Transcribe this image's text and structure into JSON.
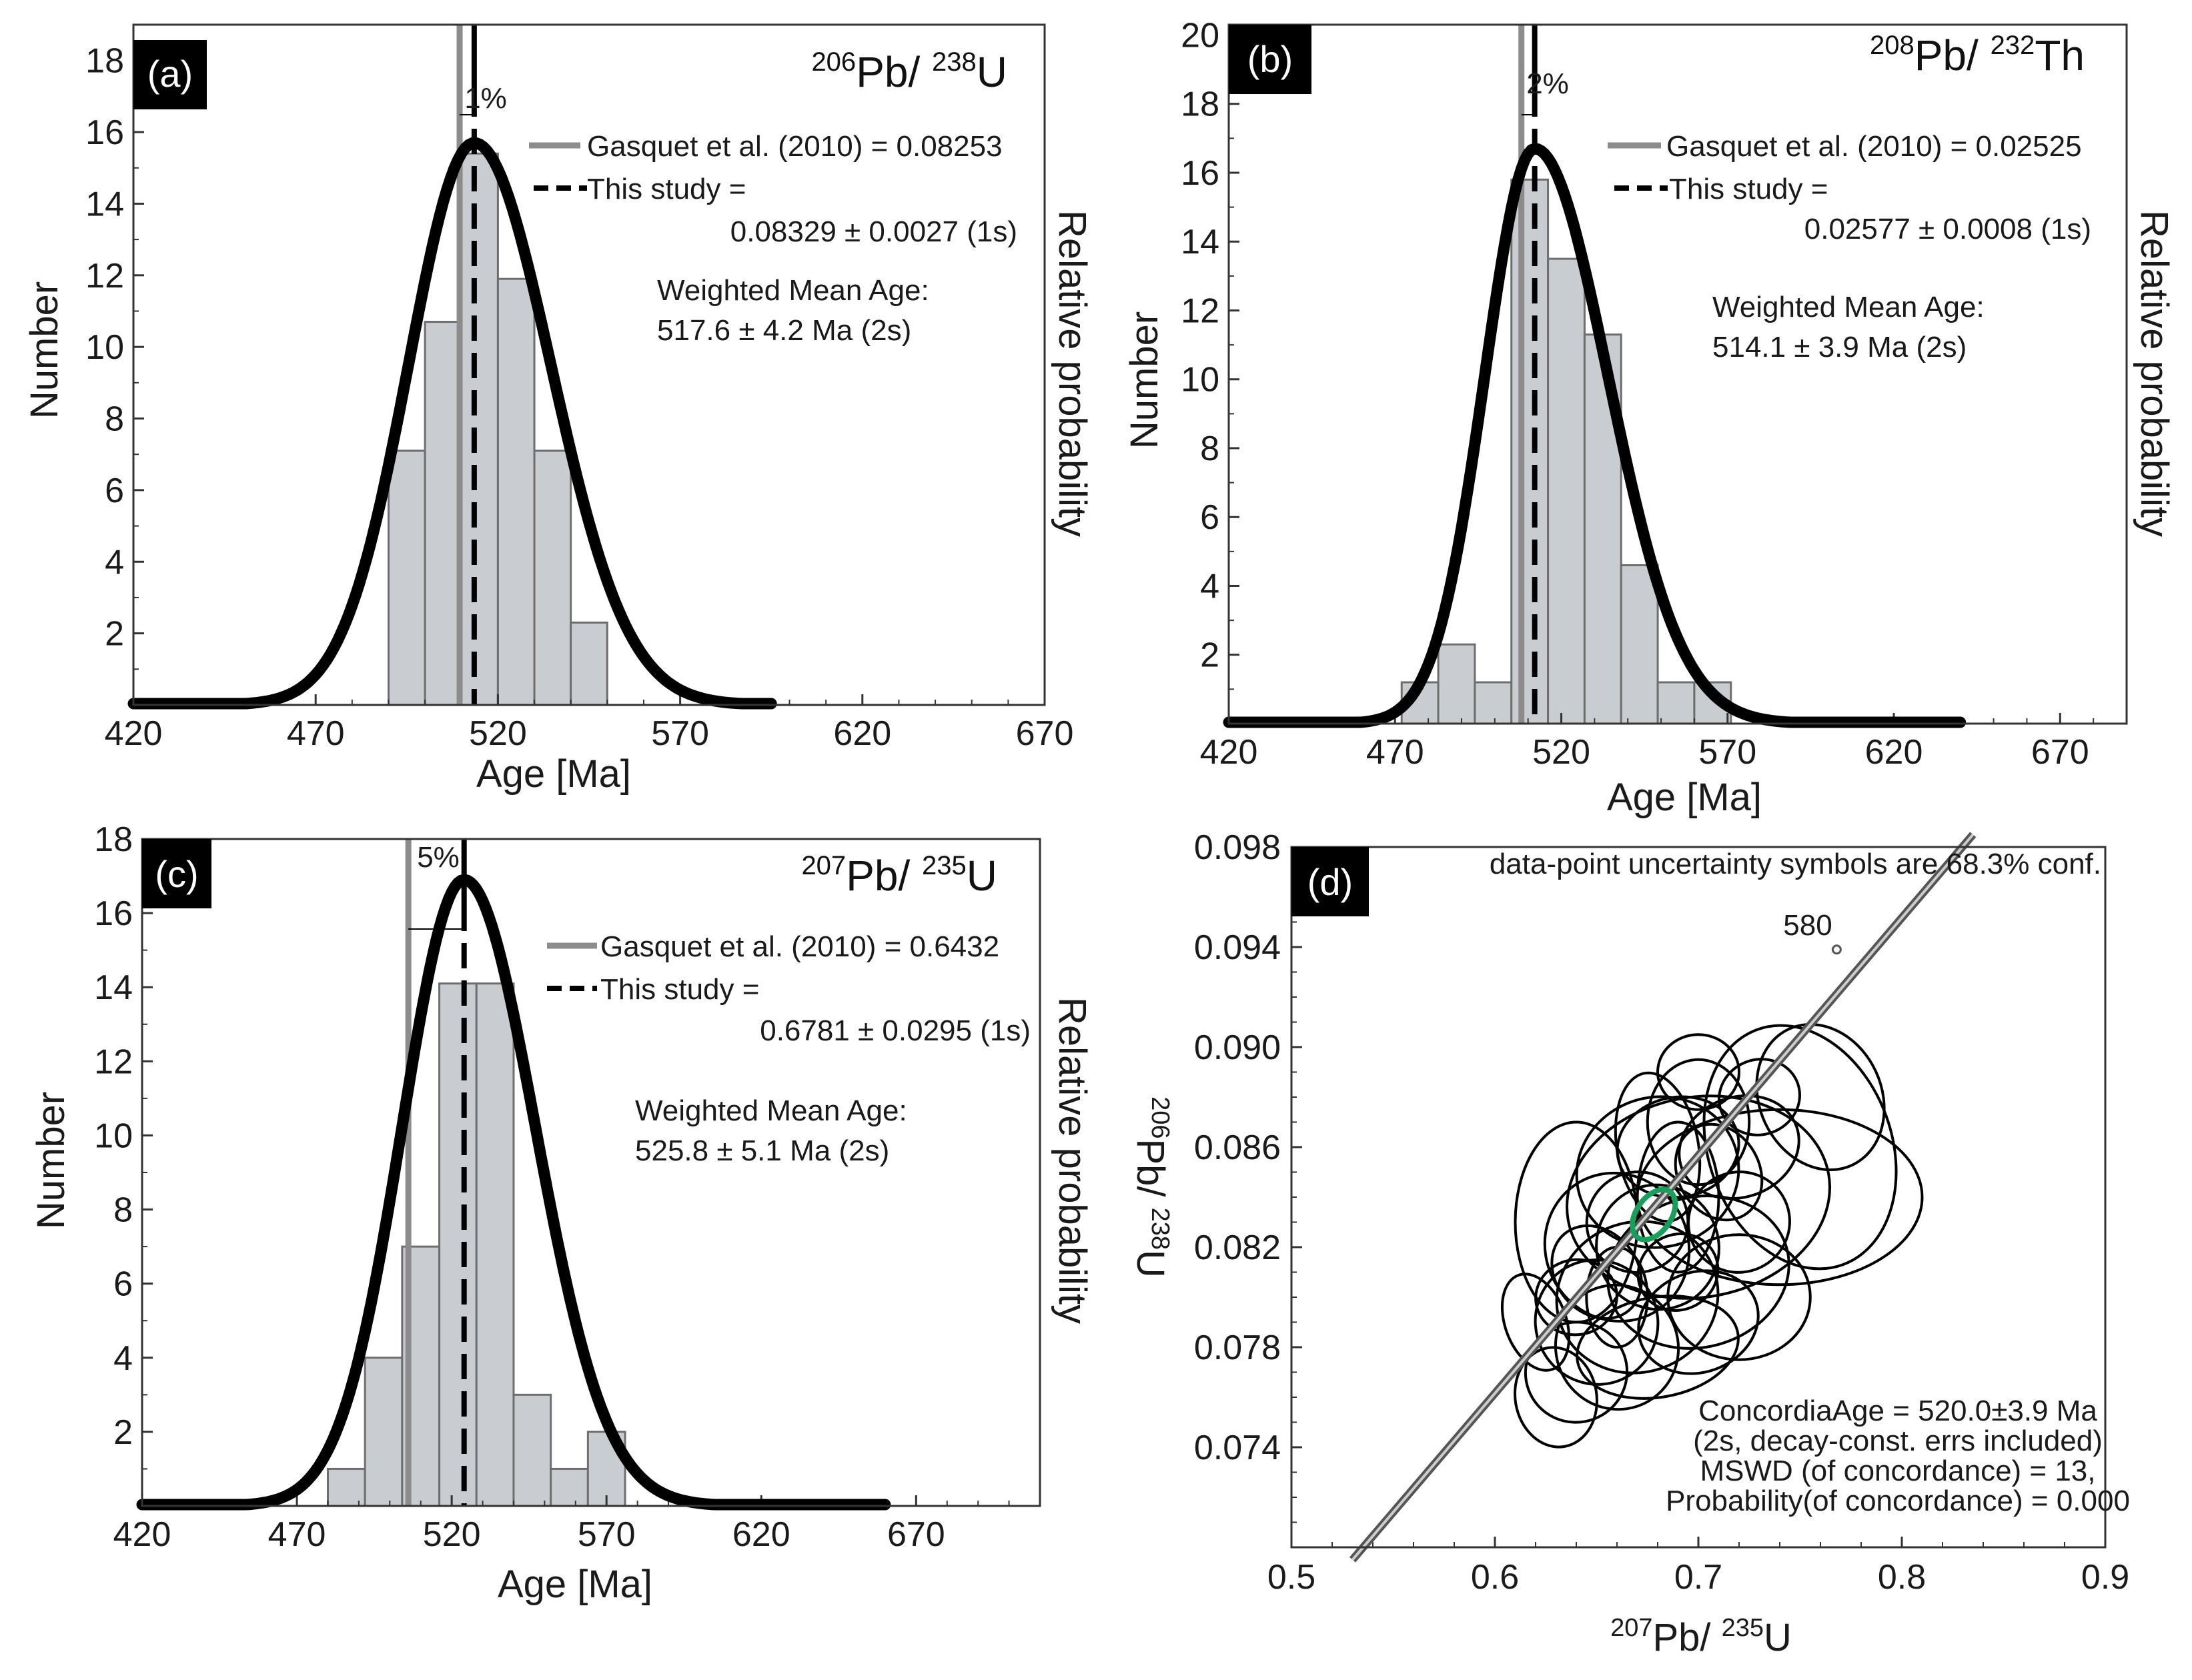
{
  "chart_data": [
    {
      "type": "bar",
      "panel": "(a)",
      "title_mass1": "206",
      "title_el1": "Pb/ ",
      "title_mass2": "238",
      "title_el2": "U",
      "xlabel": "Age [Ma]",
      "ylabel": "Number",
      "y2label": "Relative probability",
      "xlim": [
        420,
        670
      ],
      "ylim": [
        0,
        19
      ],
      "xticks": [
        "420",
        "470",
        "520",
        "570",
        "620",
        "670"
      ],
      "yticks": [
        "2",
        "4",
        "6",
        "8",
        "10",
        "12",
        "14",
        "16",
        "18"
      ],
      "bin_edges": [
        490,
        500,
        510,
        520,
        530,
        540,
        550
      ],
      "values": [
        7.1,
        10.7,
        15.4,
        11.9,
        7.1,
        2.3
      ],
      "curve": {
        "mean": 513.5,
        "sd_left": 18,
        "sd_right": 21,
        "peak": 15.7,
        "xmin": 420,
        "xmax": 595
      },
      "reference_line": {
        "label": "Gasquet et al. (2010) = 0.08253",
        "age": 509.5
      },
      "study_line": {
        "label": "This study =",
        "value": "0.08329 ± 0.0027 (1s)",
        "age": 513.5
      },
      "offset_label": "1%",
      "wm_title": "Weighted Mean Age:",
      "wm_value": "517.6 ± 4.2 Ma (2s)"
    },
    {
      "type": "bar",
      "panel": "(b)",
      "title_mass1": "208",
      "title_el1": "Pb/ ",
      "title_mass2": "232",
      "title_el2": "Th",
      "xlabel": "Age [Ma]",
      "ylabel": "Number",
      "y2label": "Relative probability",
      "xlim": [
        420,
        690
      ],
      "ylim": [
        0,
        20.3
      ],
      "xticks": [
        "420",
        "470",
        "520",
        "570",
        "620",
        "670"
      ],
      "yticks": [
        "2",
        "4",
        "6",
        "8",
        "10",
        "12",
        "14",
        "16",
        "18",
        "20"
      ],
      "bin_edges": [
        472,
        483,
        494,
        505,
        516,
        527,
        538,
        549,
        560,
        571
      ],
      "values": [
        1.2,
        2.3,
        1.2,
        15.8,
        13.5,
        11.3,
        4.6,
        1.2,
        1.2
      ],
      "curve": {
        "mean": 512,
        "sd_left": 15,
        "sd_right": 22,
        "peak": 16.7,
        "xmin": 420,
        "xmax": 640
      },
      "reference_line": {
        "label": "Gasquet et al. (2010) = 0.02525",
        "age": 508
      },
      "study_line": {
        "label": "This study =",
        "value": "0.02577 ± 0.0008 (1s)",
        "age": 512
      },
      "offset_label": "2%",
      "wm_title": "Weighted Mean Age:",
      "wm_value": "514.1 ± 3.9 Ma (2s)"
    },
    {
      "type": "bar",
      "panel": "(c)",
      "title_mass1": "207",
      "title_el1": "Pb/ ",
      "title_mass2": "235",
      "title_el2": "U",
      "xlabel": "Age [Ma]",
      "ylabel": "Number",
      "y2label": "Relative probability",
      "xlim": [
        420,
        710
      ],
      "ylim": [
        0,
        18
      ],
      "xticks": [
        "420",
        "470",
        "520",
        "570",
        "620",
        "670"
      ],
      "yticks": [
        "2",
        "4",
        "6",
        "8",
        "10",
        "12",
        "14",
        "16",
        "18"
      ],
      "bin_edges": [
        480,
        492,
        504,
        516,
        528,
        540,
        552,
        564,
        576
      ],
      "values": [
        1,
        4,
        7,
        14.1,
        14.1,
        3,
        1,
        2
      ],
      "curve": {
        "mean": 524,
        "sd_left": 20,
        "sd_right": 23,
        "peak": 16.9,
        "xmin": 420,
        "xmax": 660
      },
      "reference_line": {
        "label": "Gasquet et al. (2010) = 0.6432",
        "age": 506
      },
      "study_line": {
        "label": "This study =",
        "value": "0.6781 ± 0.0295 (1s)",
        "age": 524
      },
      "offset_label": "5%",
      "wm_title": "Weighted Mean Age:",
      "wm_value": "525.8 ± 5.1 Ma (2s)"
    },
    {
      "type": "scatter",
      "panel": "(d)",
      "xlabel_mass1": "207",
      "xlabel_el1": "Pb/ ",
      "xlabel_mass2": "235",
      "xlabel_el2": "U",
      "ylabel_mass1": "206",
      "ylabel_el1": "Pb/ ",
      "ylabel_mass2": "238",
      "ylabel_el2": "U",
      "xlim": [
        0.5,
        0.9
      ],
      "ylim": [
        0.07,
        0.098
      ],
      "xticks": [
        "0.5",
        "0.6",
        "0.7",
        "0.8",
        "0.9"
      ],
      "yticks": [
        "0.074",
        "0.078",
        "0.082",
        "0.086",
        "0.090",
        "0.094",
        "0.098"
      ],
      "note": "data-point uncertainty symbols are 68.3% conf.",
      "concordia_marker": "580",
      "concordia_line": [
        [
          0.53,
          0.0695
        ],
        [
          0.835,
          0.0985
        ]
      ],
      "concordia_age": {
        "x": 0.6781,
        "y": 0.0833,
        "rx": 0.008,
        "ry": 0.001,
        "rot": -55
      },
      "result_lines": [
        "ConcordiaAge = 520.0±3.9 Ma",
        "(2s, decay-const. errs included)",
        "MSWD (of concordance) = 13,",
        "Probability(of concordance) = 0.000"
      ],
      "ellipses": [
        [
          0.7,
          0.084,
          0.065,
          0.004,
          10
        ],
        [
          0.74,
          0.084,
          0.07,
          0.0035,
          0
        ],
        [
          0.75,
          0.086,
          0.045,
          0.005,
          20
        ],
        [
          0.76,
          0.088,
          0.03,
          0.003,
          25
        ],
        [
          0.64,
          0.083,
          0.03,
          0.004,
          0
        ],
        [
          0.66,
          0.082,
          0.035,
          0.003,
          30
        ],
        [
          0.68,
          0.085,
          0.04,
          0.003,
          15
        ],
        [
          0.69,
          0.086,
          0.03,
          0.002,
          10
        ],
        [
          0.67,
          0.08,
          0.04,
          0.003,
          20
        ],
        [
          0.65,
          0.079,
          0.03,
          0.0025,
          25
        ],
        [
          0.72,
          0.08,
          0.035,
          0.0025,
          0
        ],
        [
          0.7,
          0.081,
          0.045,
          0.003,
          15
        ],
        [
          0.66,
          0.078,
          0.03,
          0.0025,
          30
        ],
        [
          0.64,
          0.077,
          0.025,
          0.002,
          20
        ],
        [
          0.63,
          0.076,
          0.02,
          0.002,
          10
        ],
        [
          0.68,
          0.078,
          0.04,
          0.002,
          10
        ],
        [
          0.7,
          0.087,
          0.025,
          0.0025,
          0
        ],
        [
          0.72,
          0.086,
          0.03,
          0.002,
          20
        ],
        [
          0.69,
          0.084,
          0.02,
          0.003,
          0
        ],
        [
          0.67,
          0.083,
          0.025,
          0.002,
          35
        ],
        [
          0.65,
          0.081,
          0.02,
          0.002,
          40
        ],
        [
          0.71,
          0.085,
          0.02,
          0.002,
          30
        ],
        [
          0.73,
          0.088,
          0.02,
          0.0015,
          20
        ],
        [
          0.69,
          0.081,
          0.02,
          0.0015,
          30
        ],
        [
          0.66,
          0.08,
          0.015,
          0.002,
          0
        ],
        [
          0.68,
          0.086,
          0.02,
          0.003,
          10
        ],
        [
          0.7,
          0.089,
          0.02,
          0.0015,
          0
        ],
        [
          0.62,
          0.079,
          0.015,
          0.002,
          20
        ],
        [
          0.72,
          0.083,
          0.025,
          0.002,
          30
        ],
        [
          0.64,
          0.08,
          0.02,
          0.0015,
          10
        ],
        [
          0.7,
          0.079,
          0.03,
          0.002,
          20
        ],
        [
          0.68,
          0.082,
          0.03,
          0.0025,
          25
        ]
      ]
    }
  ]
}
